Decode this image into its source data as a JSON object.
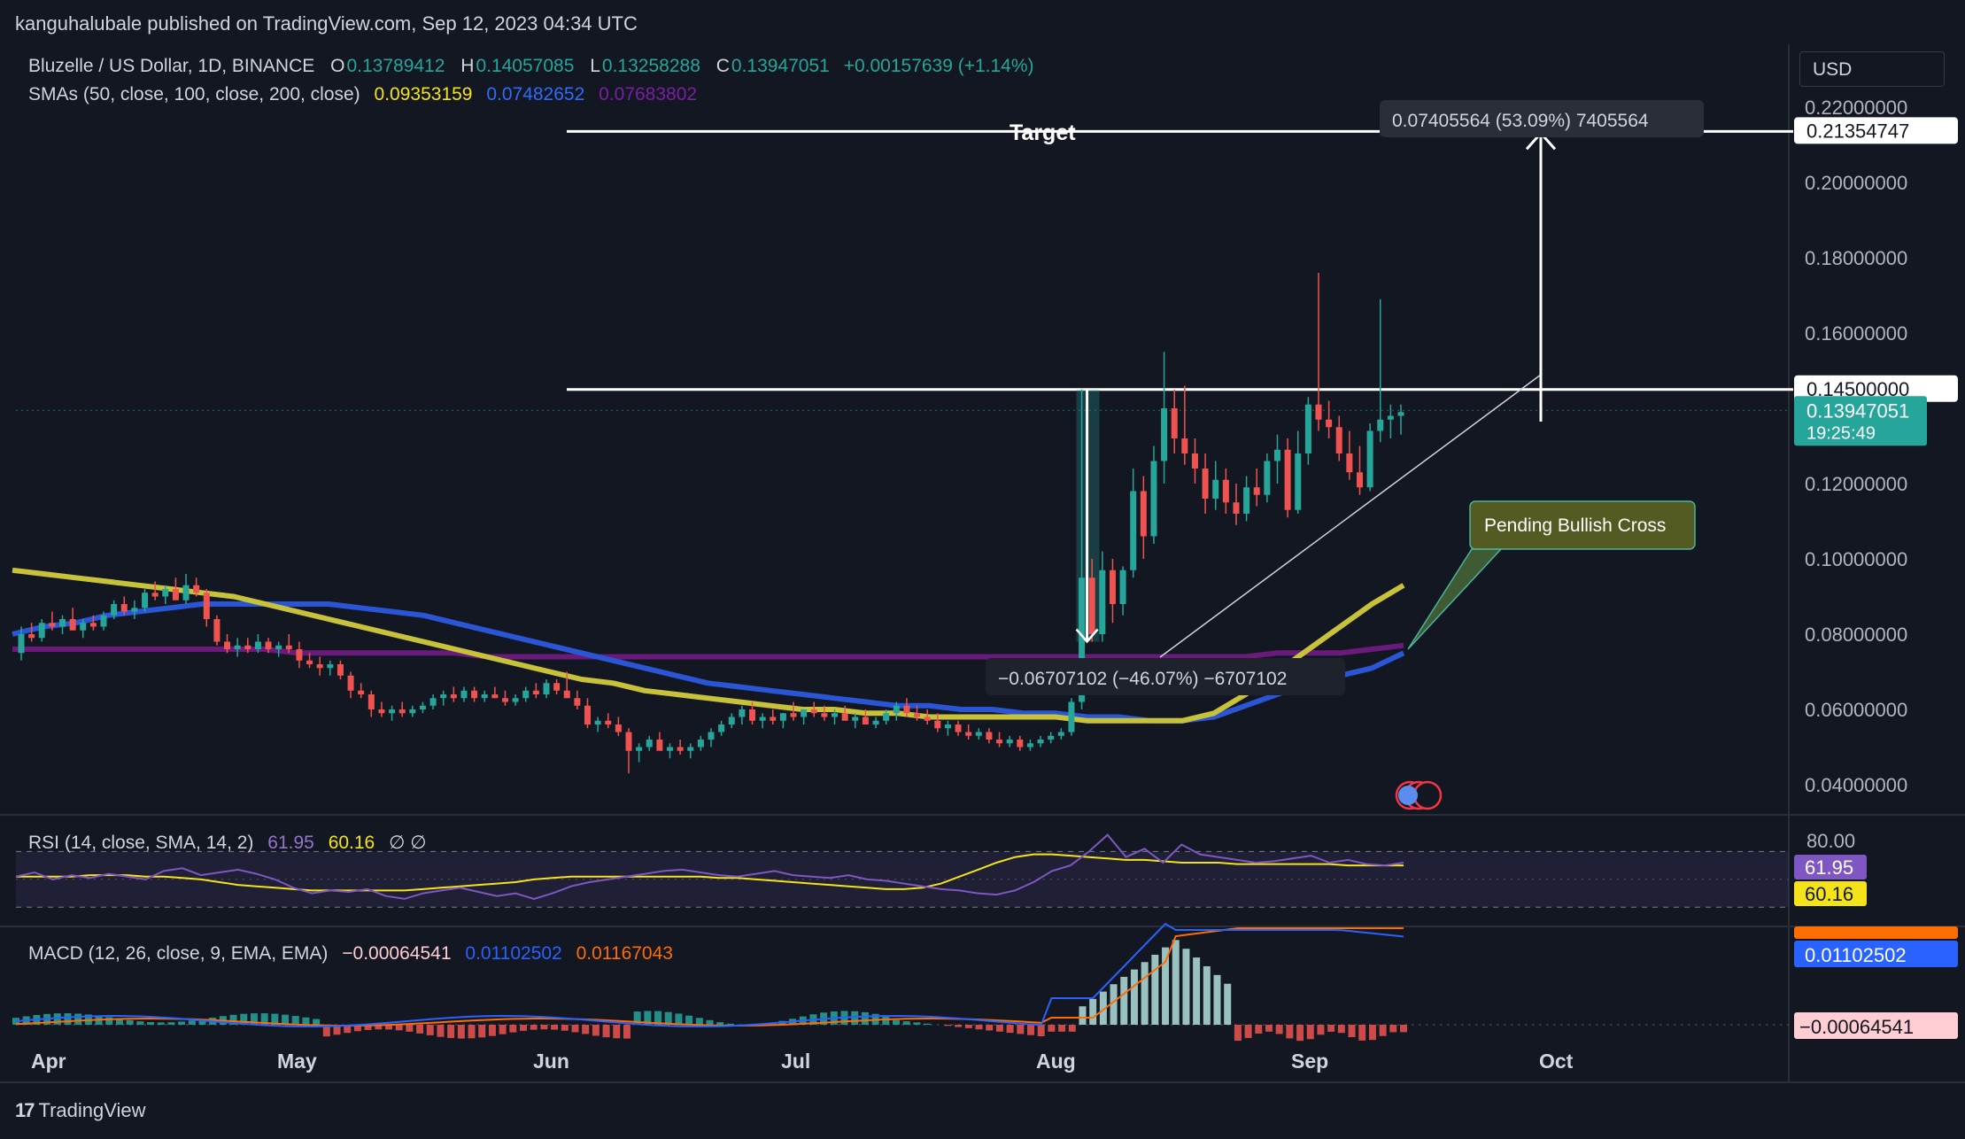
{
  "publisher": "kanguhalubale published on TradingView.com, Sep 12, 2023 04:34 UTC",
  "legend": {
    "symbol": "Bluzelle / US Dollar, 1D, BINANCE",
    "o_label": "O",
    "o": "0.13789412",
    "h_label": "H",
    "h": "0.14057085",
    "l_label": "L",
    "l": "0.13258288",
    "c_label": "C",
    "c": "0.13947051",
    "change": "+0.00157639 (+1.14%)",
    "sma_label": "SMAs (50, close, 100, close, 200, close)",
    "sma50": "0.09353159",
    "sma100": "0.07482652",
    "sma200": "0.07683802"
  },
  "currency": "USD",
  "rsi_legend": {
    "label": "RSI (14, close, SMA, 14, 2)",
    "rsi": "61.95",
    "sma": "60.16",
    "extra": "∅ ∅"
  },
  "macd_legend": {
    "label": "MACD (12, 26, close, 9, EMA, EMA)",
    "hist": "−0.00064541",
    "macd": "0.01102502",
    "signal": "0.01167043"
  },
  "footer": {
    "logo": "17",
    "brand": "TradingView"
  },
  "colors": {
    "bg": "#131722",
    "up": "#26a69a",
    "down": "#ef5350",
    "sma50": "#c7c23a",
    "sma100": "#2a56d6",
    "sma200": "#6a1b7a",
    "rsi": "#7e57c2",
    "macd": "#2962ff",
    "signal": "#ff6d00"
  },
  "chart_data": {
    "type": "candlestick",
    "x_ticks": [
      "Apr",
      "May",
      "Jun",
      "Jul",
      "Aug",
      "Sep",
      "Oct"
    ],
    "y_ticks": [
      "0.22000000",
      "0.20000000",
      "0.18000000",
      "0.16000000",
      "0.12000000",
      "0.10000000",
      "0.08000000",
      "0.06000000",
      "0.04000000"
    ],
    "ylim": [
      0.032,
      0.232
    ],
    "candles": [
      [
        0.075,
        0.082,
        0.073,
        0.08
      ],
      [
        0.08,
        0.083,
        0.078,
        0.079
      ],
      [
        0.079,
        0.084,
        0.078,
        0.083
      ],
      [
        0.083,
        0.086,
        0.081,
        0.082
      ],
      [
        0.082,
        0.085,
        0.08,
        0.084
      ],
      [
        0.084,
        0.087,
        0.082,
        0.081
      ],
      [
        0.081,
        0.084,
        0.079,
        0.083
      ],
      [
        0.083,
        0.085,
        0.081,
        0.082
      ],
      [
        0.082,
        0.086,
        0.081,
        0.085
      ],
      [
        0.085,
        0.089,
        0.084,
        0.088
      ],
      [
        0.088,
        0.09,
        0.085,
        0.086
      ],
      [
        0.086,
        0.089,
        0.084,
        0.087
      ],
      [
        0.087,
        0.092,
        0.086,
        0.091
      ],
      [
        0.091,
        0.094,
        0.089,
        0.09
      ],
      [
        0.09,
        0.093,
        0.088,
        0.092
      ],
      [
        0.092,
        0.095,
        0.09,
        0.089
      ],
      [
        0.089,
        0.096,
        0.088,
        0.093
      ],
      [
        0.093,
        0.095,
        0.09,
        0.091
      ],
      [
        0.091,
        0.092,
        0.082,
        0.084
      ],
      [
        0.084,
        0.085,
        0.077,
        0.078
      ],
      [
        0.078,
        0.08,
        0.075,
        0.076
      ],
      [
        0.076,
        0.079,
        0.074,
        0.077
      ],
      [
        0.077,
        0.079,
        0.075,
        0.076
      ],
      [
        0.076,
        0.08,
        0.075,
        0.078
      ],
      [
        0.078,
        0.079,
        0.075,
        0.076
      ],
      [
        0.076,
        0.078,
        0.074,
        0.077
      ],
      [
        0.077,
        0.08,
        0.075,
        0.076
      ],
      [
        0.076,
        0.078,
        0.071,
        0.073
      ],
      [
        0.073,
        0.075,
        0.071,
        0.072
      ],
      [
        0.072,
        0.074,
        0.069,
        0.071
      ],
      [
        0.071,
        0.073,
        0.069,
        0.072
      ],
      [
        0.072,
        0.073,
        0.068,
        0.069
      ],
      [
        0.069,
        0.07,
        0.063,
        0.065
      ],
      [
        0.065,
        0.067,
        0.063,
        0.064
      ],
      [
        0.064,
        0.065,
        0.058,
        0.06
      ],
      [
        0.06,
        0.062,
        0.058,
        0.059
      ],
      [
        0.059,
        0.061,
        0.057,
        0.06
      ],
      [
        0.06,
        0.062,
        0.058,
        0.059
      ],
      [
        0.059,
        0.061,
        0.058,
        0.06
      ],
      [
        0.06,
        0.062,
        0.059,
        0.061
      ],
      [
        0.061,
        0.064,
        0.06,
        0.063
      ],
      [
        0.063,
        0.065,
        0.061,
        0.064
      ],
      [
        0.064,
        0.066,
        0.062,
        0.063
      ],
      [
        0.063,
        0.066,
        0.062,
        0.065
      ],
      [
        0.065,
        0.066,
        0.062,
        0.063
      ],
      [
        0.063,
        0.065,
        0.062,
        0.064
      ],
      [
        0.064,
        0.066,
        0.063,
        0.063
      ],
      [
        0.063,
        0.065,
        0.061,
        0.062
      ],
      [
        0.062,
        0.064,
        0.061,
        0.063
      ],
      [
        0.063,
        0.066,
        0.062,
        0.065
      ],
      [
        0.065,
        0.067,
        0.063,
        0.064
      ],
      [
        0.064,
        0.068,
        0.063,
        0.067
      ],
      [
        0.067,
        0.068,
        0.064,
        0.065
      ],
      [
        0.065,
        0.07,
        0.064,
        0.063
      ],
      [
        0.063,
        0.065,
        0.06,
        0.061
      ],
      [
        0.061,
        0.063,
        0.055,
        0.056
      ],
      [
        0.056,
        0.058,
        0.054,
        0.057
      ],
      [
        0.057,
        0.059,
        0.055,
        0.056
      ],
      [
        0.056,
        0.058,
        0.053,
        0.054
      ],
      [
        0.054,
        0.055,
        0.043,
        0.049
      ],
      [
        0.049,
        0.051,
        0.046,
        0.05
      ],
      [
        0.05,
        0.053,
        0.049,
        0.052
      ],
      [
        0.052,
        0.054,
        0.05,
        0.049
      ],
      [
        0.049,
        0.051,
        0.047,
        0.05
      ],
      [
        0.05,
        0.052,
        0.048,
        0.049
      ],
      [
        0.049,
        0.051,
        0.047,
        0.05
      ],
      [
        0.05,
        0.053,
        0.049,
        0.052
      ],
      [
        0.052,
        0.055,
        0.05,
        0.054
      ],
      [
        0.054,
        0.057,
        0.053,
        0.056
      ],
      [
        0.056,
        0.059,
        0.055,
        0.058
      ],
      [
        0.058,
        0.061,
        0.056,
        0.06
      ],
      [
        0.06,
        0.062,
        0.056,
        0.057
      ],
      [
        0.057,
        0.059,
        0.055,
        0.058
      ],
      [
        0.058,
        0.06,
        0.056,
        0.057
      ],
      [
        0.057,
        0.059,
        0.055,
        0.059
      ],
      [
        0.059,
        0.062,
        0.057,
        0.058
      ],
      [
        0.058,
        0.06,
        0.056,
        0.06
      ],
      [
        0.06,
        0.062,
        0.058,
        0.059
      ],
      [
        0.059,
        0.061,
        0.057,
        0.058
      ],
      [
        0.058,
        0.06,
        0.056,
        0.059
      ],
      [
        0.059,
        0.061,
        0.057,
        0.057
      ],
      [
        0.057,
        0.059,
        0.055,
        0.058
      ],
      [
        0.058,
        0.06,
        0.056,
        0.056
      ],
      [
        0.056,
        0.058,
        0.055,
        0.057
      ],
      [
        0.057,
        0.06,
        0.056,
        0.059
      ],
      [
        0.059,
        0.062,
        0.057,
        0.061
      ],
      [
        0.061,
        0.063,
        0.058,
        0.059
      ],
      [
        0.059,
        0.061,
        0.057,
        0.058
      ],
      [
        0.058,
        0.06,
        0.056,
        0.057
      ],
      [
        0.057,
        0.059,
        0.054,
        0.055
      ],
      [
        0.055,
        0.057,
        0.053,
        0.056
      ],
      [
        0.056,
        0.057,
        0.053,
        0.054
      ],
      [
        0.054,
        0.056,
        0.052,
        0.053
      ],
      [
        0.053,
        0.055,
        0.052,
        0.054
      ],
      [
        0.054,
        0.055,
        0.051,
        0.052
      ],
      [
        0.052,
        0.054,
        0.05,
        0.051
      ],
      [
        0.051,
        0.053,
        0.05,
        0.052
      ],
      [
        0.052,
        0.053,
        0.049,
        0.05
      ],
      [
        0.05,
        0.052,
        0.049,
        0.051
      ],
      [
        0.051,
        0.053,
        0.05,
        0.052
      ],
      [
        0.052,
        0.054,
        0.051,
        0.053
      ],
      [
        0.053,
        0.055,
        0.052,
        0.054
      ],
      [
        0.054,
        0.063,
        0.053,
        0.062
      ],
      [
        0.062,
        0.145,
        0.06,
        0.095
      ],
      [
        0.095,
        0.1,
        0.078,
        0.08
      ],
      [
        0.08,
        0.102,
        0.078,
        0.097
      ],
      [
        0.097,
        0.1,
        0.083,
        0.088
      ],
      [
        0.088,
        0.098,
        0.085,
        0.097
      ],
      [
        0.097,
        0.124,
        0.095,
        0.118
      ],
      [
        0.118,
        0.122,
        0.1,
        0.106
      ],
      [
        0.106,
        0.13,
        0.104,
        0.126
      ],
      [
        0.126,
        0.155,
        0.12,
        0.14
      ],
      [
        0.14,
        0.145,
        0.128,
        0.132
      ],
      [
        0.132,
        0.146,
        0.125,
        0.128
      ],
      [
        0.128,
        0.132,
        0.12,
        0.124
      ],
      [
        0.124,
        0.128,
        0.112,
        0.116
      ],
      [
        0.116,
        0.126,
        0.113,
        0.121
      ],
      [
        0.121,
        0.124,
        0.112,
        0.115
      ],
      [
        0.115,
        0.12,
        0.109,
        0.112
      ],
      [
        0.112,
        0.122,
        0.11,
        0.119
      ],
      [
        0.119,
        0.124,
        0.114,
        0.117
      ],
      [
        0.117,
        0.128,
        0.115,
        0.126
      ],
      [
        0.126,
        0.133,
        0.12,
        0.129
      ],
      [
        0.129,
        0.132,
        0.111,
        0.113
      ],
      [
        0.113,
        0.134,
        0.112,
        0.128
      ],
      [
        0.128,
        0.143,
        0.125,
        0.141
      ],
      [
        0.141,
        0.176,
        0.134,
        0.137
      ],
      [
        0.137,
        0.142,
        0.132,
        0.135
      ],
      [
        0.135,
        0.138,
        0.126,
        0.128
      ],
      [
        0.128,
        0.134,
        0.121,
        0.123
      ],
      [
        0.123,
        0.13,
        0.117,
        0.119
      ],
      [
        0.119,
        0.136,
        0.118,
        0.134
      ],
      [
        0.134,
        0.169,
        0.131,
        0.137
      ],
      [
        0.137,
        0.141,
        0.132,
        0.138
      ],
      [
        0.138,
        0.141,
        0.133,
        0.139
      ]
    ],
    "sma50": [
      0.097,
      0.096,
      0.095,
      0.094,
      0.093,
      0.092,
      0.091,
      0.09,
      0.088,
      0.086,
      0.084,
      0.082,
      0.08,
      0.078,
      0.076,
      0.074,
      0.072,
      0.07,
      0.068,
      0.067,
      0.065,
      0.064,
      0.063,
      0.062,
      0.061,
      0.06,
      0.06,
      0.059,
      0.059,
      0.058,
      0.058,
      0.058,
      0.058,
      0.058,
      0.057,
      0.057,
      0.057,
      0.057,
      0.059,
      0.064,
      0.07,
      0.076,
      0.082,
      0.088,
      0.093
    ],
    "sma100": [
      0.08,
      0.082,
      0.083,
      0.085,
      0.086,
      0.087,
      0.088,
      0.088,
      0.088,
      0.088,
      0.088,
      0.087,
      0.086,
      0.085,
      0.083,
      0.081,
      0.079,
      0.077,
      0.075,
      0.073,
      0.071,
      0.069,
      0.067,
      0.066,
      0.065,
      0.064,
      0.063,
      0.062,
      0.061,
      0.061,
      0.06,
      0.06,
      0.059,
      0.059,
      0.058,
      0.058,
      0.057,
      0.057,
      0.058,
      0.061,
      0.064,
      0.067,
      0.069,
      0.071,
      0.075
    ],
    "sma200": [
      0.076,
      0.076,
      0.076,
      0.076,
      0.076,
      0.076,
      0.076,
      0.076,
      0.076,
      0.075,
      0.075,
      0.075,
      0.075,
      0.075,
      0.075,
      0.074,
      0.074,
      0.074,
      0.074,
      0.074,
      0.074,
      0.074,
      0.074,
      0.074,
      0.074,
      0.074,
      0.074,
      0.074,
      0.074,
      0.074,
      0.074,
      0.074,
      0.074,
      0.074,
      0.074,
      0.074,
      0.074,
      0.074,
      0.074,
      0.074,
      0.075,
      0.075,
      0.075,
      0.076,
      0.077
    ],
    "rsi": [
      52,
      55,
      50,
      53,
      51,
      54,
      52,
      50,
      56,
      58,
      53,
      55,
      57,
      54,
      50,
      44,
      40,
      42,
      41,
      43,
      38,
      36,
      40,
      42,
      44,
      41,
      38,
      40,
      36,
      40,
      45,
      48,
      50,
      52,
      54,
      56,
      57,
      55,
      53,
      52,
      54,
      56,
      53,
      52,
      51,
      53,
      50,
      49,
      47,
      45,
      43,
      42,
      40,
      39,
      42,
      48,
      56,
      60,
      70,
      82,
      66,
      72,
      62,
      75,
      68,
      66,
      64,
      62,
      63,
      65,
      67,
      62,
      64,
      61,
      60,
      62
    ],
    "rsi_sma": [
      52,
      52,
      52,
      52,
      53,
      53,
      53,
      52,
      52,
      51,
      50,
      48,
      46,
      45,
      44,
      43,
      42,
      42,
      42,
      42,
      42,
      42,
      43,
      44,
      45,
      46,
      47,
      48,
      50,
      51,
      52,
      52,
      52,
      52,
      52,
      52,
      52,
      52,
      51,
      51,
      50,
      49,
      48,
      47,
      46,
      45,
      44,
      43,
      43,
      44,
      47,
      52,
      57,
      62,
      66,
      68,
      68,
      67,
      66,
      65,
      64,
      64,
      63,
      62,
      62,
      62,
      61,
      61,
      61,
      61,
      61,
      61,
      60,
      60,
      60,
      60
    ],
    "rsi_levels": {
      "upper": 70,
      "lower": 30,
      "middle": 50,
      "tick_upper": "80.00",
      "value_rsi": "61.95",
      "value_sma": "60.16"
    },
    "macd_values": {
      "hist": "−0.00064541",
      "macd": "0.01102502",
      "signal": "0.01167043"
    },
    "annotations": {
      "target_label": "Target",
      "measure_up": "0.07405564 (53.09%) 7405564",
      "measure_down": "−0.06707102 (−46.07%) −6707102",
      "pending": "Pending Bullish Cross",
      "target_price": "0.21354747",
      "resistance_price": "0.14500000",
      "last_price": "0.13947051",
      "countdown": "19:25:49"
    }
  }
}
